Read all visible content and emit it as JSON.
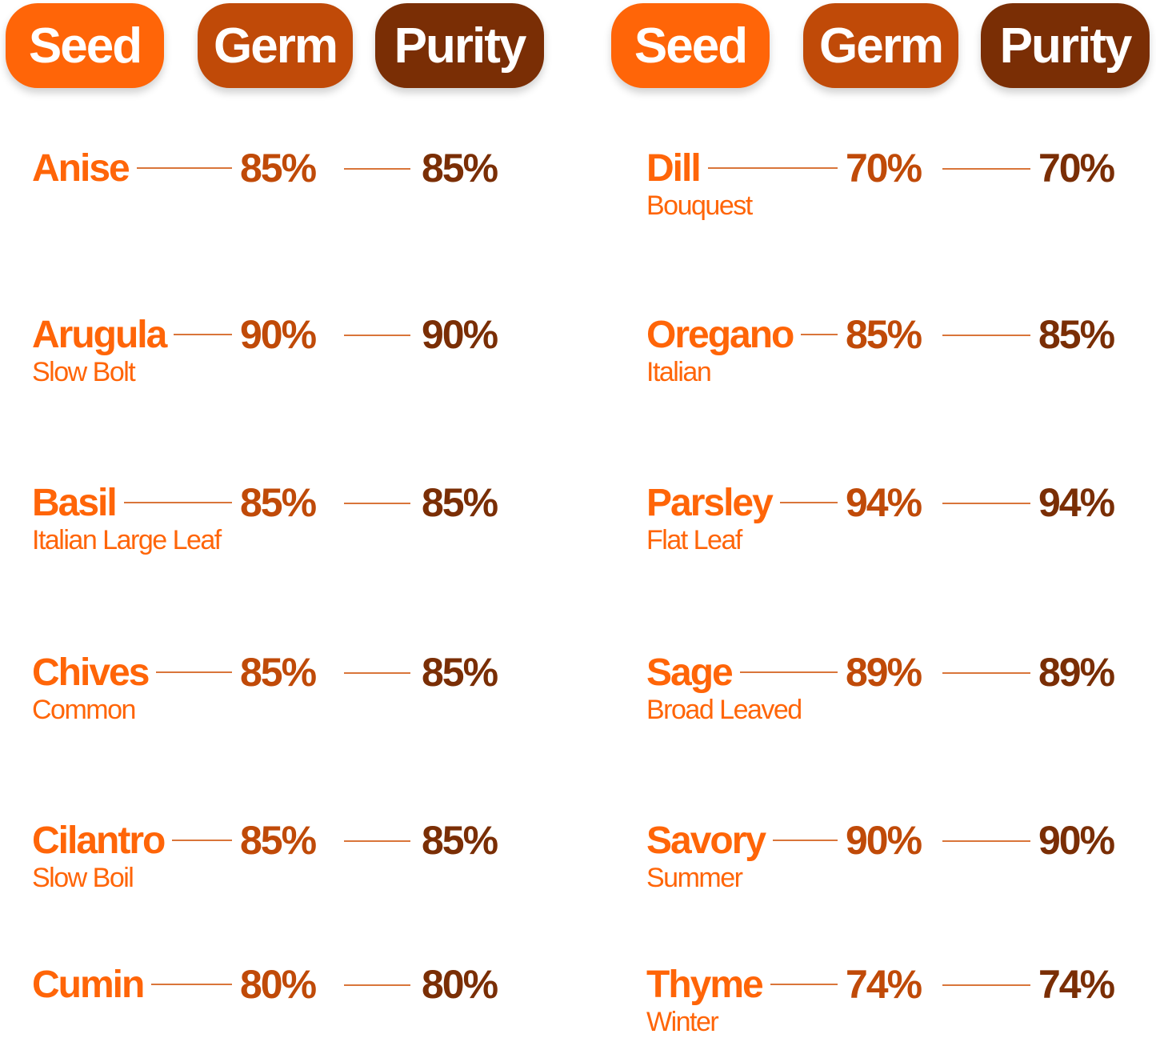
{
  "colors": {
    "seed": "#ff6508",
    "germ": "#c04a08",
    "purity": "#7a2e05",
    "line": "#d9753a"
  },
  "headers": {
    "seed": "Seed",
    "germ": "Germ",
    "purity": "Purity"
  },
  "left": [
    {
      "name": "Anise",
      "variety": "",
      "germ": "85%",
      "purity": "85%"
    },
    {
      "name": "Arugula",
      "variety": "Slow Bolt",
      "germ": "90%",
      "purity": "90%"
    },
    {
      "name": "Basil",
      "variety": "Italian Large Leaf",
      "germ": "85%",
      "purity": "85%"
    },
    {
      "name": "Chives",
      "variety": "Common",
      "germ": "85%",
      "purity": "85%"
    },
    {
      "name": "Cilantro",
      "variety": "Slow Boil",
      "germ": "85%",
      "purity": "85%"
    },
    {
      "name": "Cumin",
      "variety": "",
      "germ": "80%",
      "purity": "80%"
    }
  ],
  "right": [
    {
      "name": "Dill",
      "variety": "Bouquest",
      "germ": "70%",
      "purity": "70%"
    },
    {
      "name": "Oregano",
      "variety": "Italian",
      "germ": "85%",
      "purity": "85%"
    },
    {
      "name": "Parsley",
      "variety": "Flat Leaf",
      "germ": "94%",
      "purity": "94%"
    },
    {
      "name": "Sage",
      "variety": "Broad Leaved",
      "germ": "89%",
      "purity": "89%"
    },
    {
      "name": "Savory",
      "variety": "Summer",
      "germ": "90%",
      "purity": "90%"
    },
    {
      "name": "Thyme",
      "variety": "Winter",
      "germ": "74%",
      "purity": "74%"
    }
  ]
}
